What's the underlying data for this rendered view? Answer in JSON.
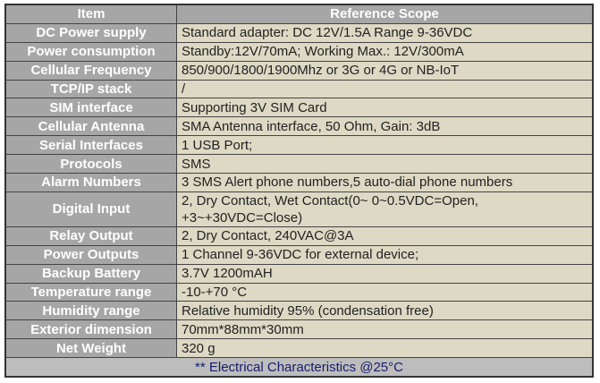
{
  "header": {
    "item": "Item",
    "scope": "Reference Scope"
  },
  "rows": [
    {
      "k": "DC Power supply",
      "v": "Standard adapter: DC 12V/1.5A  Range 9-36VDC"
    },
    {
      "k": "Power consumption",
      "v": "Standby:12V/70mA;  Working Max.: 12V/300mA"
    },
    {
      "k": "Cellular Frequency",
      "v": "850/900/1800/1900Mhz or 3G or 4G or NB-IoT"
    },
    {
      "k": "TCP/IP stack",
      "v": "/"
    },
    {
      "k": "SIM interface",
      "v": "Supporting 3V SIM Card"
    },
    {
      "k": "Cellular Antenna",
      "v": "SMA Antenna interface, 50 Ohm, Gain: 3dB"
    },
    {
      "k": "Serial Interfaces",
      "v": "1 USB Port;"
    },
    {
      "k": "Protocols",
      "v": "SMS"
    },
    {
      "k": "Alarm Numbers",
      "v": "3 SMS Alert phone numbers,5 auto-dial phone numbers"
    },
    {
      "k": "Digital Input",
      "v": "2, Dry Contact, Wet Contact(0~ 0~0.5VDC=Open, +3~+30VDC=Close)"
    },
    {
      "k": "Relay Output",
      "v": "2, Dry Contact, 240VAC@3A"
    },
    {
      "k": "Power Outputs",
      "v": "1 Channel 9-36VDC for external device;"
    },
    {
      "k": "Backup Battery",
      "v": "3.7V 1200mAH"
    },
    {
      "k": "Temperature range",
      "v": "-10-+70 °C"
    },
    {
      "k": "Humidity range",
      "v": "Relative humidity 95% (condensation free)"
    },
    {
      "k": "Exterior dimension",
      "v": "70mm*88mm*30mm"
    },
    {
      "k": "Net Weight",
      "v": "320 g"
    }
  ],
  "footer": "** Electrical Characteristics @25°C",
  "colors": {
    "label_bg": "#a6a6a6",
    "value_bg": "#ddd9c4",
    "footer_bg": "#bdbdbd",
    "footer_text": "#1a1a6e"
  }
}
